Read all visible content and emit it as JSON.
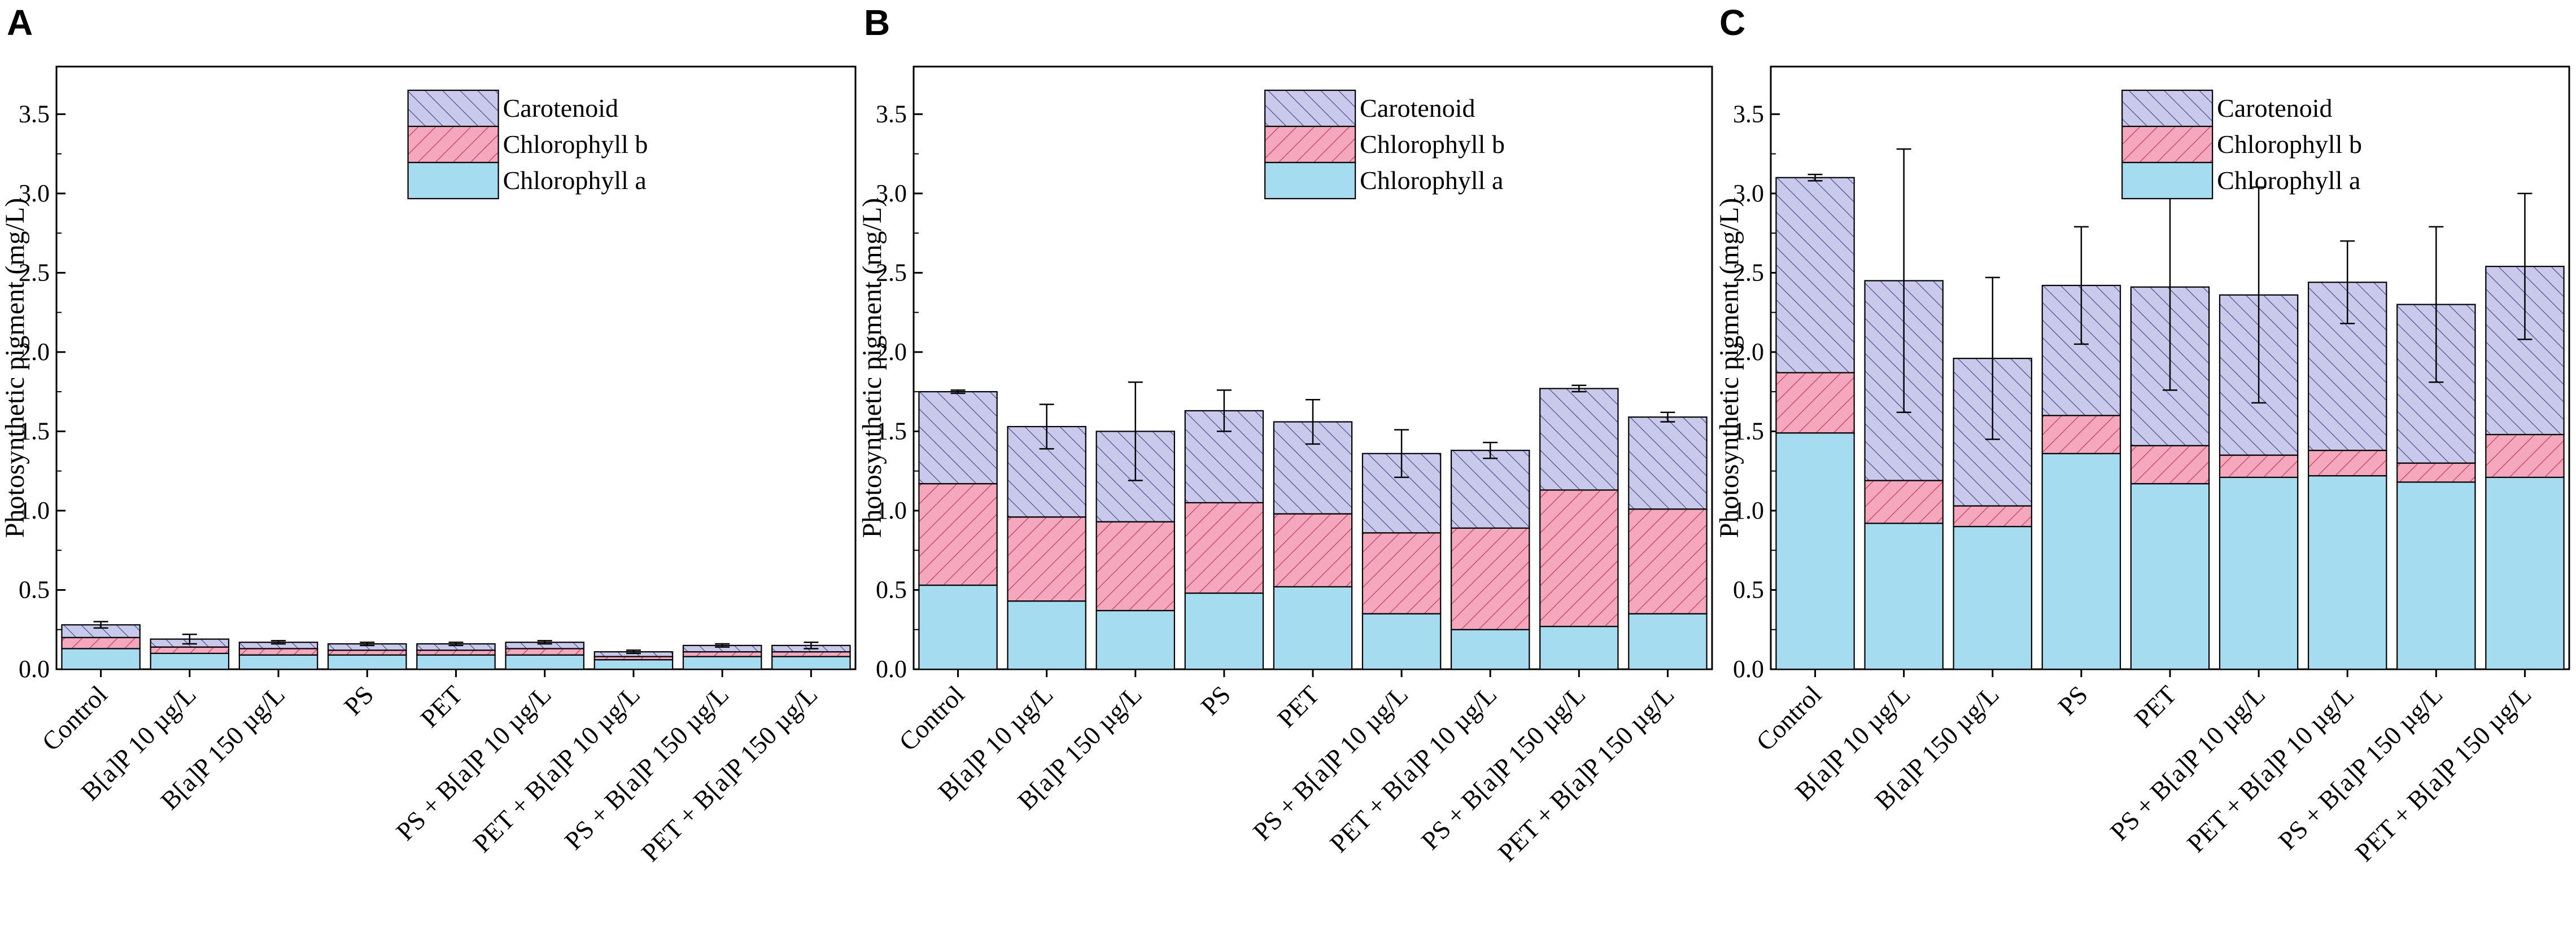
{
  "colors": {
    "chlorophyll_a": "#a6dcf0",
    "chlorophyll_b": "#f4a7bd",
    "carotenoid": "#c9c9ec",
    "hatch_b": "#c0395e",
    "hatch_car": "#4a4a8a",
    "axis": "#000000"
  },
  "chart_data": [
    {
      "type": "bar",
      "stacked": true,
      "panel": "A",
      "ylabel": "Photosynthetic pigment (mg/L)",
      "ylim": [
        0,
        3.8
      ],
      "yticks": [
        "0.0",
        "0.5",
        "1.0",
        "1.5",
        "2.0",
        "2.5",
        "3.0",
        "3.5"
      ],
      "legend": [
        "Carotenoid",
        "Chlorophyll b",
        "Chlorophyll a"
      ],
      "legend_position": "top-center",
      "categories": [
        "Control",
        "B[a]P 10 µg/L",
        "B[a]P 150 µg/L",
        "PS",
        "PET",
        "PS + B[a]P 10 µg/L",
        "PET + B[a]P 10 µg/L",
        "PS + B[a]P 150 µg/L",
        "PET + B[a]P 150 µg/L"
      ],
      "series": [
        {
          "name": "Chlorophyll a",
          "values": [
            0.13,
            0.1,
            0.09,
            0.09,
            0.09,
            0.09,
            0.06,
            0.08,
            0.08
          ]
        },
        {
          "name": "Chlorophyll b",
          "values": [
            0.07,
            0.04,
            0.04,
            0.03,
            0.03,
            0.04,
            0.02,
            0.03,
            0.03
          ]
        },
        {
          "name": "Carotenoid",
          "values": [
            0.08,
            0.05,
            0.04,
            0.04,
            0.04,
            0.04,
            0.03,
            0.04,
            0.04
          ]
        }
      ],
      "errors": [
        0.02,
        0.03,
        0.01,
        0.01,
        0.01,
        0.01,
        0.01,
        0.01,
        0.02
      ]
    },
    {
      "type": "bar",
      "stacked": true,
      "panel": "B",
      "ylabel": "Photosynthetic pigment (mg/L)",
      "ylim": [
        0,
        3.8
      ],
      "yticks": [
        "0.0",
        "0.5",
        "1.0",
        "1.5",
        "2.0",
        "2.5",
        "3.0",
        "3.5"
      ],
      "legend": [
        "Carotenoid",
        "Chlorophyll b",
        "Chlorophyll a"
      ],
      "legend_position": "top-center",
      "categories": [
        "Control",
        "B[a]P 10 µg/L",
        "B[a]P 150 µg/L",
        "PS",
        "PET",
        "PS + B[a]P 10 µg/L",
        "PET + B[a]P 10 µg/L",
        "PS + B[a]P 150 µg/L",
        "PET + B[a]P 150 µg/L"
      ],
      "series": [
        {
          "name": "Chlorophyll a",
          "values": [
            0.53,
            0.43,
            0.37,
            0.48,
            0.52,
            0.35,
            0.25,
            0.27,
            0.35
          ]
        },
        {
          "name": "Chlorophyll b",
          "values": [
            0.64,
            0.53,
            0.56,
            0.57,
            0.46,
            0.51,
            0.64,
            0.86,
            0.66
          ]
        },
        {
          "name": "Carotenoid",
          "values": [
            0.58,
            0.57,
            0.57,
            0.58,
            0.58,
            0.5,
            0.49,
            0.64,
            0.58
          ]
        }
      ],
      "errors": [
        0.01,
        0.14,
        0.31,
        0.13,
        0.14,
        0.15,
        0.05,
        0.02,
        0.03
      ]
    },
    {
      "type": "bar",
      "stacked": true,
      "panel": "C",
      "ylabel": "Photosynthetic pigment (mg/L)",
      "ylim": [
        0,
        3.8
      ],
      "yticks": [
        "0.0",
        "0.5",
        "1.0",
        "1.5",
        "2.0",
        "2.5",
        "3.0",
        "3.5"
      ],
      "legend": [
        "Carotenoid",
        "Chlorophyll b",
        "Chlorophyll a"
      ],
      "legend_position": "top-center",
      "categories": [
        "Control",
        "B[a]P 10 µg/L",
        "B[a]P 150 µg/L",
        "PS",
        "PET",
        "PS + B[a]P 10 µg/L",
        "PET + B[a]P 10 µg/L",
        "PS + B[a]P 150 µg/L",
        "PET + B[a]P 150 µg/L"
      ],
      "series": [
        {
          "name": "Chlorophyll a",
          "values": [
            1.49,
            0.92,
            0.9,
            1.36,
            1.17,
            1.21,
            1.22,
            1.18,
            1.21
          ]
        },
        {
          "name": "Chlorophyll b",
          "values": [
            0.38,
            0.27,
            0.13,
            0.24,
            0.24,
            0.14,
            0.16,
            0.12,
            0.27
          ]
        },
        {
          "name": "Carotenoid",
          "values": [
            1.23,
            1.26,
            0.93,
            0.82,
            1.0,
            1.01,
            1.06,
            1.0,
            1.06
          ]
        }
      ],
      "errors": [
        0.02,
        0.83,
        0.51,
        0.37,
        0.65,
        0.68,
        0.26,
        0.49,
        0.46
      ]
    }
  ]
}
